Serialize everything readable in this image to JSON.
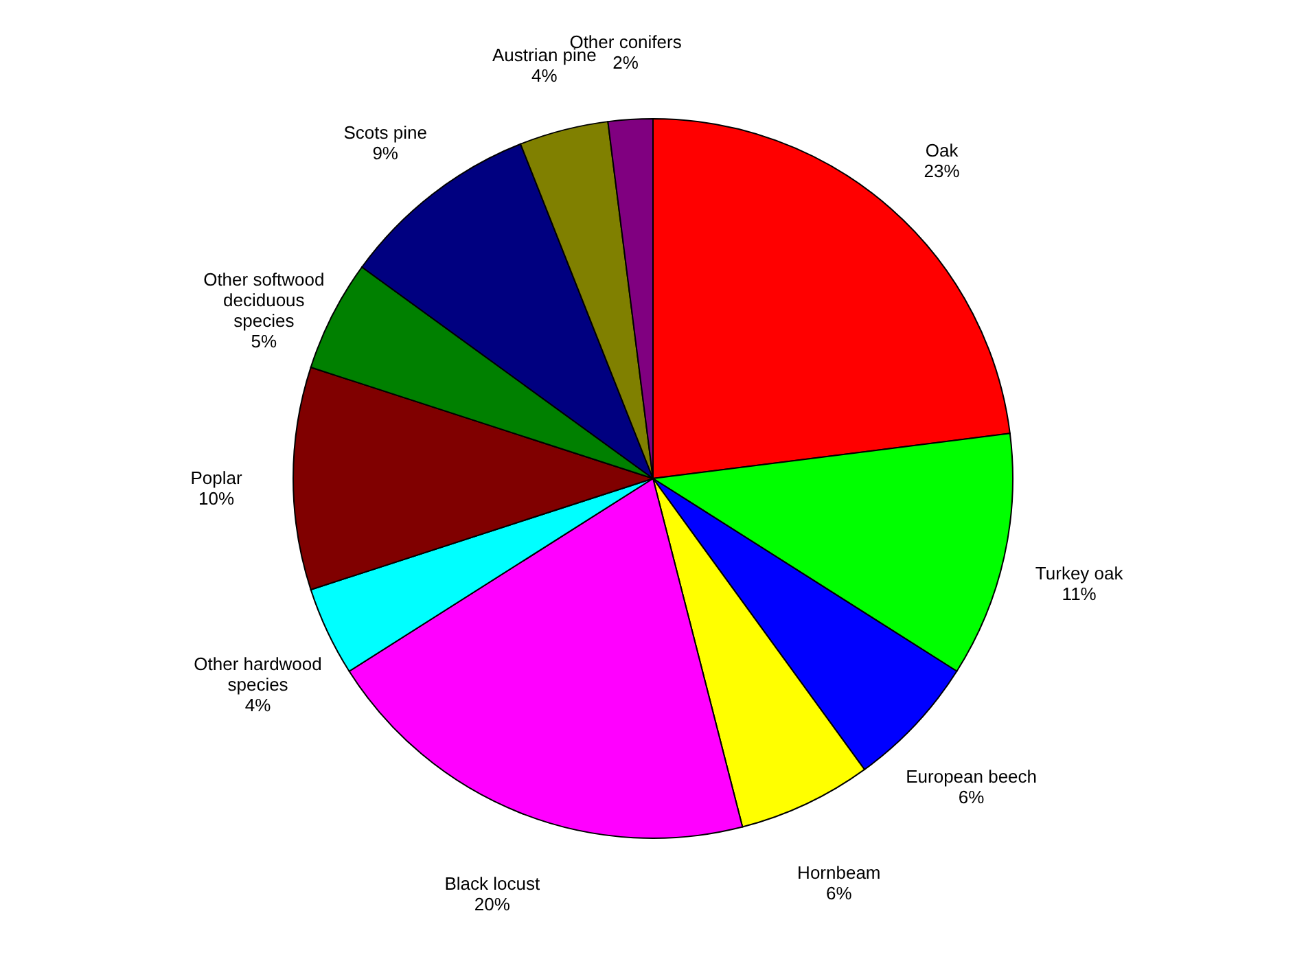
{
  "chart_data": {
    "type": "pie",
    "categories": [
      "Oak",
      "Turkey oak",
      "European beech",
      "Hornbeam",
      "Black locust",
      "Other hardwood species",
      "Poplar",
      "Other softwood deciduous species",
      "Scots pine",
      "Austrian pine",
      "Other conifers"
    ],
    "values": [
      23,
      11,
      6,
      6,
      20,
      4,
      10,
      5,
      9,
      4,
      2
    ],
    "value_labels": [
      "23%",
      "11%",
      "6%",
      "6%",
      "20%",
      "4%",
      "10%",
      "5%",
      "9%",
      "4%",
      "2%"
    ],
    "colors": [
      "#ff0000",
      "#00ff00",
      "#0000ff",
      "#ffff00",
      "#ff00ff",
      "#00ffff",
      "#800000",
      "#008000",
      "#000080",
      "#808000",
      "#800080"
    ]
  }
}
